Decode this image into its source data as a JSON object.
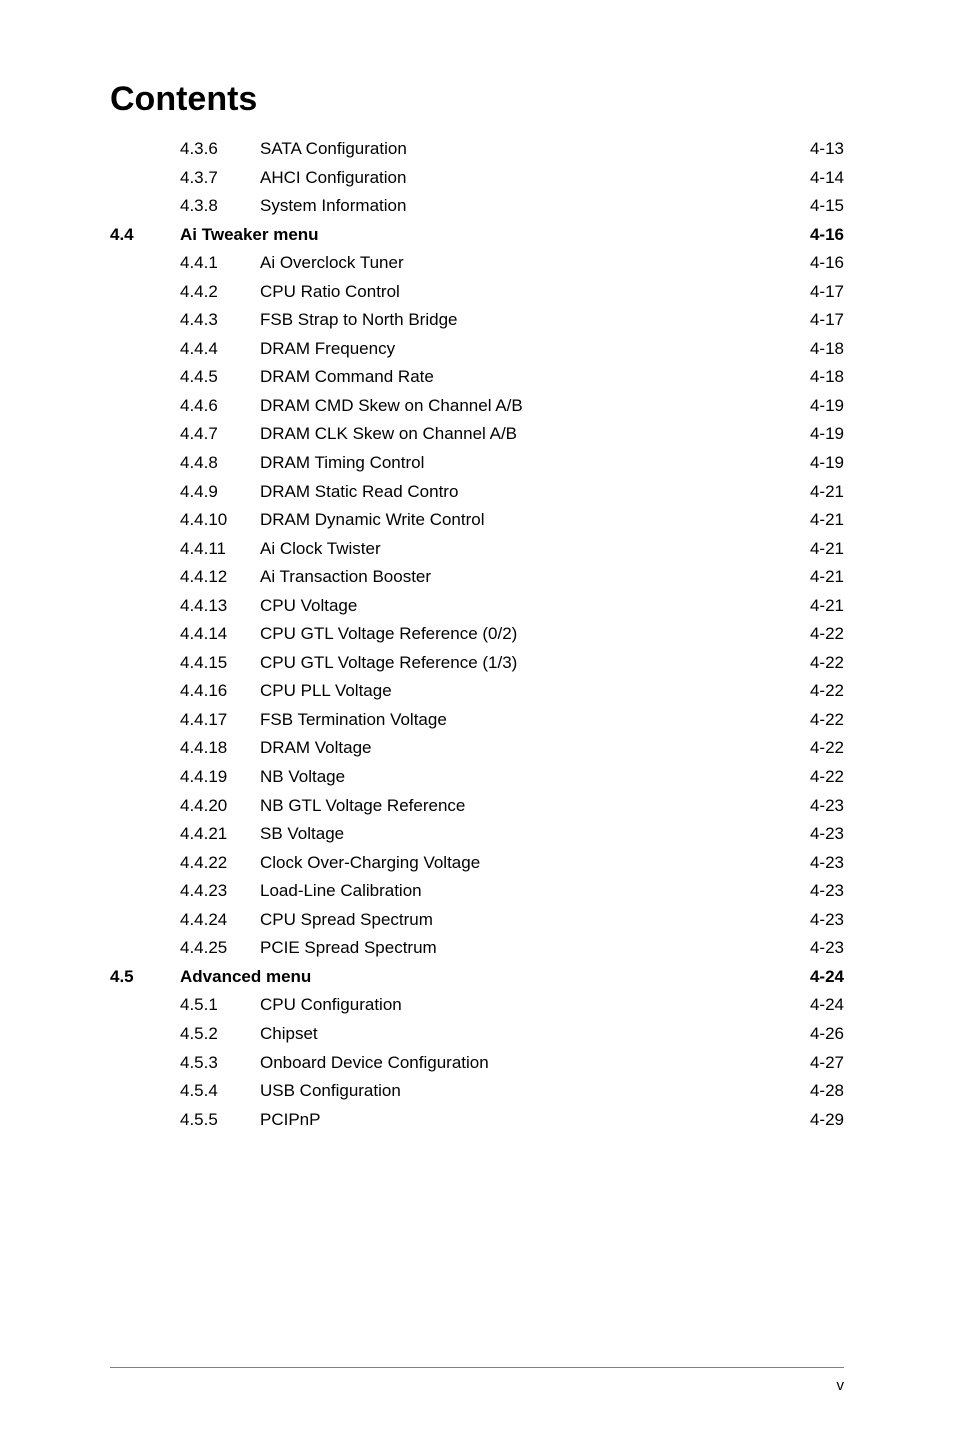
{
  "title": "Contents",
  "footer_page": "v",
  "entries": [
    {
      "chapter": "",
      "section": "4.3.6",
      "label": "SATA Configuration",
      "page": "4-13",
      "bold": false,
      "level": "sub"
    },
    {
      "chapter": "",
      "section": "4.3.7",
      "label": "AHCI Configuration",
      "page": "4-14",
      "bold": false,
      "level": "sub"
    },
    {
      "chapter": "",
      "section": "4.3.8",
      "label": "System Information",
      "page": "4-15",
      "bold": false,
      "level": "sub"
    },
    {
      "chapter": "4.4",
      "section": "",
      "label": "Ai Tweaker menu",
      "page": "4-16",
      "bold": true,
      "level": "top"
    },
    {
      "chapter": "",
      "section": "4.4.1",
      "label": "Ai Overclock Tuner",
      "page": "4-16",
      "bold": false,
      "level": "sub"
    },
    {
      "chapter": "",
      "section": "4.4.2",
      "label": "CPU Ratio Control",
      "page": "4-17",
      "bold": false,
      "level": "sub"
    },
    {
      "chapter": "",
      "section": "4.4.3",
      "label": "FSB Strap to North Bridge",
      "page": "4-17",
      "bold": false,
      "level": "sub"
    },
    {
      "chapter": "",
      "section": "4.4.4",
      "label": "DRAM Frequency",
      "page": "4-18",
      "bold": false,
      "level": "sub"
    },
    {
      "chapter": "",
      "section": "4.4.5",
      "label": "DRAM Command Rate",
      "page": "4-18",
      "bold": false,
      "level": "sub"
    },
    {
      "chapter": "",
      "section": "4.4.6",
      "label": "DRAM CMD Skew on Channel A/B",
      "page": "4-19",
      "bold": false,
      "level": "sub"
    },
    {
      "chapter": "",
      "section": "4.4.7",
      "label": "DRAM CLK Skew on Channel A/B",
      "page": "4-19",
      "bold": false,
      "level": "sub"
    },
    {
      "chapter": "",
      "section": "4.4.8",
      "label": "DRAM Timing Control",
      "page": "4-19",
      "bold": false,
      "level": "sub"
    },
    {
      "chapter": "",
      "section": "4.4.9",
      "label": "DRAM Static Read Contro",
      "page": "4-21",
      "bold": false,
      "level": "sub"
    },
    {
      "chapter": "",
      "section": "4.4.10",
      "label": "DRAM Dynamic Write Control",
      "page": "4-21",
      "bold": false,
      "level": "sub"
    },
    {
      "chapter": "",
      "section": "4.4.11",
      "label": "Ai Clock Twister",
      "page": "4-21",
      "bold": false,
      "level": "sub"
    },
    {
      "chapter": "",
      "section": "4.4.12",
      "label": "Ai Transaction Booster",
      "page": "4-21",
      "bold": false,
      "level": "sub"
    },
    {
      "chapter": "",
      "section": "4.4.13",
      "label": "CPU Voltage ",
      "page": "4-21",
      "bold": false,
      "level": "sub"
    },
    {
      "chapter": "",
      "section": "4.4.14",
      "label": "CPU GTL Voltage Reference (0/2)",
      "page": "4-22",
      "bold": false,
      "level": "sub"
    },
    {
      "chapter": "",
      "section": "4.4.15",
      "label": "CPU GTL Voltage Reference (1/3)",
      "page": "4-22",
      "bold": false,
      "level": "sub"
    },
    {
      "chapter": "",
      "section": "4.4.16",
      "label": "CPU PLL Voltage",
      "page": "4-22",
      "bold": false,
      "level": "sub"
    },
    {
      "chapter": "",
      "section": "4.4.17",
      "label": "FSB Termination Voltage",
      "page": "4-22",
      "bold": false,
      "level": "sub"
    },
    {
      "chapter": "",
      "section": "4.4.18",
      "label": "DRAM Voltage",
      "page": "4-22",
      "bold": false,
      "level": "sub"
    },
    {
      "chapter": "",
      "section": "4.4.19",
      "label": "NB Voltage",
      "page": "4-22",
      "bold": false,
      "level": "sub"
    },
    {
      "chapter": "",
      "section": "4.4.20",
      "label": "NB GTL Voltage Reference",
      "page": "4-23",
      "bold": false,
      "level": "sub"
    },
    {
      "chapter": "",
      "section": "4.4.21",
      "label": "SB Voltage",
      "page": "4-23",
      "bold": false,
      "level": "sub"
    },
    {
      "chapter": "",
      "section": "4.4.22",
      "label": "Clock Over-Charging Voltage",
      "page": "4-23",
      "bold": false,
      "level": "sub"
    },
    {
      "chapter": "",
      "section": "4.4.23",
      "label": "Load-Line Calibration",
      "page": "4-23",
      "bold": false,
      "level": "sub"
    },
    {
      "chapter": "",
      "section": "4.4.24",
      "label": "CPU Spread Spectrum",
      "page": "4-23",
      "bold": false,
      "level": "sub"
    },
    {
      "chapter": "",
      "section": "4.4.25",
      "label": "PCIE Spread Spectrum",
      "page": "4-23",
      "bold": false,
      "level": "sub"
    },
    {
      "chapter": "4.5",
      "section": "",
      "label": "Advanced menu",
      "page": "4-24",
      "bold": true,
      "level": "top"
    },
    {
      "chapter": "",
      "section": "4.5.1",
      "label": "CPU Configuration",
      "page": "4-24",
      "bold": false,
      "level": "sub"
    },
    {
      "chapter": "",
      "section": "4.5.2",
      "label": "Chipset",
      "page": "4-26",
      "bold": false,
      "level": "sub"
    },
    {
      "chapter": "",
      "section": "4.5.3",
      "label": "Onboard Device Configuration",
      "page": "4-27",
      "bold": false,
      "level": "sub"
    },
    {
      "chapter": "",
      "section": "4.5.4",
      "label": "USB Configuration",
      "page": "4-28",
      "bold": false,
      "level": "sub"
    },
    {
      "chapter": "",
      "section": "4.5.5",
      "label": "PCIPnP",
      "page": "4-29",
      "bold": false,
      "level": "sub"
    }
  ]
}
